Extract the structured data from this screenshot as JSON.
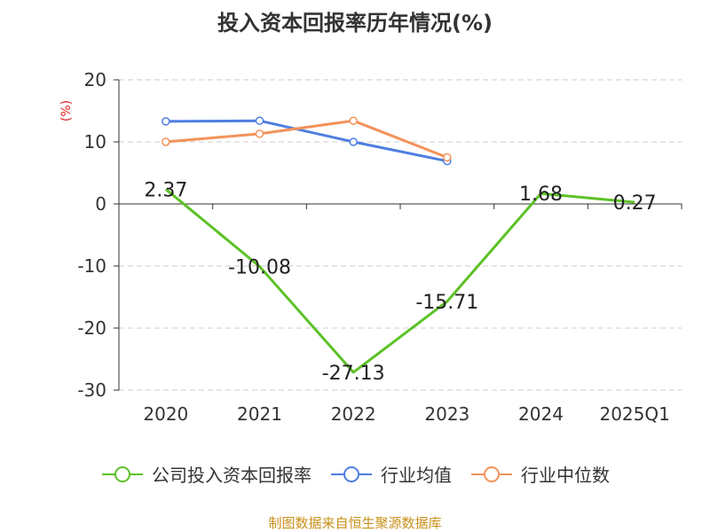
{
  "title": "投入资本回报率历年情况(%)",
  "source": "制图数据来自恒生聚源数据库",
  "colors": {
    "company": "#5cc126",
    "industry_avg": "#4e7ee0",
    "industry_median": "#f4925a",
    "unit_label": "#e02020",
    "axis": "#333333",
    "grid": "#cccccc"
  },
  "chart_data": {
    "type": "line",
    "title": "投入资本回报率历年情况(%)",
    "ylabel": "(%)",
    "xlabel": "",
    "categories": [
      "2020",
      "2021",
      "2022",
      "2023",
      "2024",
      "2025Q1"
    ],
    "ylim": [
      -30,
      20
    ],
    "yticks": [
      20,
      10,
      0,
      -10,
      -20,
      -30
    ],
    "grid": "horizontal-dashed",
    "legend_position": "bottom",
    "series": [
      {
        "name": "公司投入资本回报率",
        "color": "#5cc126",
        "values": [
          2.37,
          -10.08,
          -27.13,
          -15.71,
          1.68,
          0.27
        ],
        "data_labels": [
          "2.37",
          "-10.08",
          "-27.13",
          "-15.71",
          "1.68",
          "0.27"
        ],
        "markers": false
      },
      {
        "name": "行业均值",
        "color": "#4e7ee0",
        "values": [
          13.3,
          13.4,
          10.0,
          6.9,
          null,
          null
        ],
        "markers": true
      },
      {
        "name": "行业中位数",
        "color": "#f4925a",
        "values": [
          10.0,
          11.3,
          13.4,
          7.5,
          null,
          null
        ],
        "markers": true
      }
    ]
  }
}
